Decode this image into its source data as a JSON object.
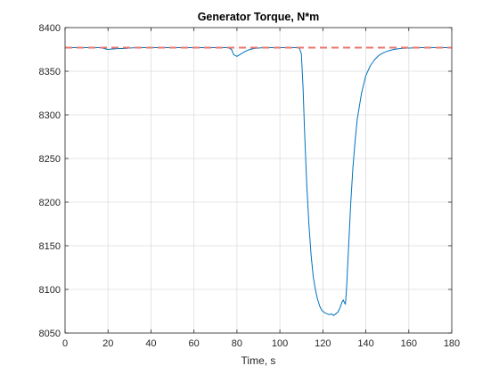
{
  "chart_data": {
    "type": "line",
    "title": "Generator Torque, N*m",
    "xlabel": "Time, s",
    "ylabel": "",
    "xlim": [
      0,
      180
    ],
    "ylim": [
      8050,
      8400
    ],
    "xticks": [
      0,
      20,
      40,
      60,
      80,
      100,
      120,
      140,
      160,
      180
    ],
    "yticks": [
      8050,
      8100,
      8150,
      8200,
      8250,
      8300,
      8350,
      8400
    ],
    "grid": true,
    "legend": "none",
    "series": [
      {
        "color": "#0072BD",
        "style": "solid",
        "x": [
          0,
          17,
          18,
          20,
          22,
          25,
          28,
          30,
          33,
          76,
          77.5,
          78.5,
          80,
          82,
          84,
          86,
          88,
          92,
          100,
          109,
          110,
          110.8,
          111.5,
          112.5,
          113.5,
          114.5,
          115.5,
          116.5,
          117.5,
          118.5,
          119.5,
          121,
          123,
          124,
          125,
          126,
          127,
          128,
          129,
          129.5,
          130,
          130.5,
          131,
          132,
          133,
          134,
          135,
          136,
          138,
          140,
          142,
          144,
          146,
          148,
          150,
          153,
          156,
          160,
          165,
          170,
          180
        ],
        "y": [
          8377,
          8377,
          8376,
          8375,
          8375.5,
          8376,
          8376,
          8376.5,
          8377,
          8377,
          8375,
          8369,
          8367,
          8370,
          8373,
          8375,
          8376,
          8377,
          8377,
          8377,
          8370,
          8330,
          8280,
          8220,
          8175,
          8140,
          8115,
          8100,
          8089,
          8081,
          8076,
          8073,
          8071,
          8072,
          8070,
          8072,
          8074,
          8079,
          8086,
          8088,
          8085,
          8083,
          8100,
          8150,
          8200,
          8240,
          8270,
          8295,
          8325,
          8345,
          8356,
          8363,
          8368,
          8371,
          8373,
          8375,
          8376,
          8376.5,
          8377,
          8377,
          8377
        ]
      },
      {
        "color": "#E8766D",
        "style": "dashed",
        "x": [
          0,
          180
        ],
        "y": [
          8377,
          8377
        ]
      }
    ]
  }
}
